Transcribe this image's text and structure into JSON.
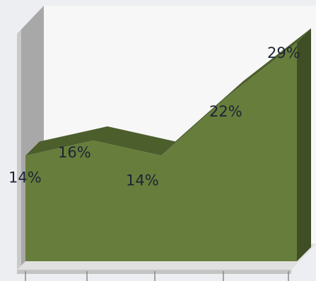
{
  "chart_data": {
    "type": "area",
    "style": "3d",
    "categories": [
      "",
      "",
      "",
      "",
      ""
    ],
    "values": [
      14,
      16,
      14,
      22,
      29
    ],
    "data_labels": [
      "14%",
      "16%",
      "14%",
      "22%",
      "29%"
    ],
    "ylim": [
      0,
      32
    ],
    "grid": false,
    "legend": "none",
    "colors": {
      "series_front": "#667d3c",
      "series_top": "#4c5e2c",
      "series_side": "#3f4e25",
      "wall_back": "#f7f7f7",
      "wall_side": "#a5a5a5",
      "floor": "#e2e2e2",
      "background": "#eceef1",
      "label": "#1c2434"
    }
  }
}
